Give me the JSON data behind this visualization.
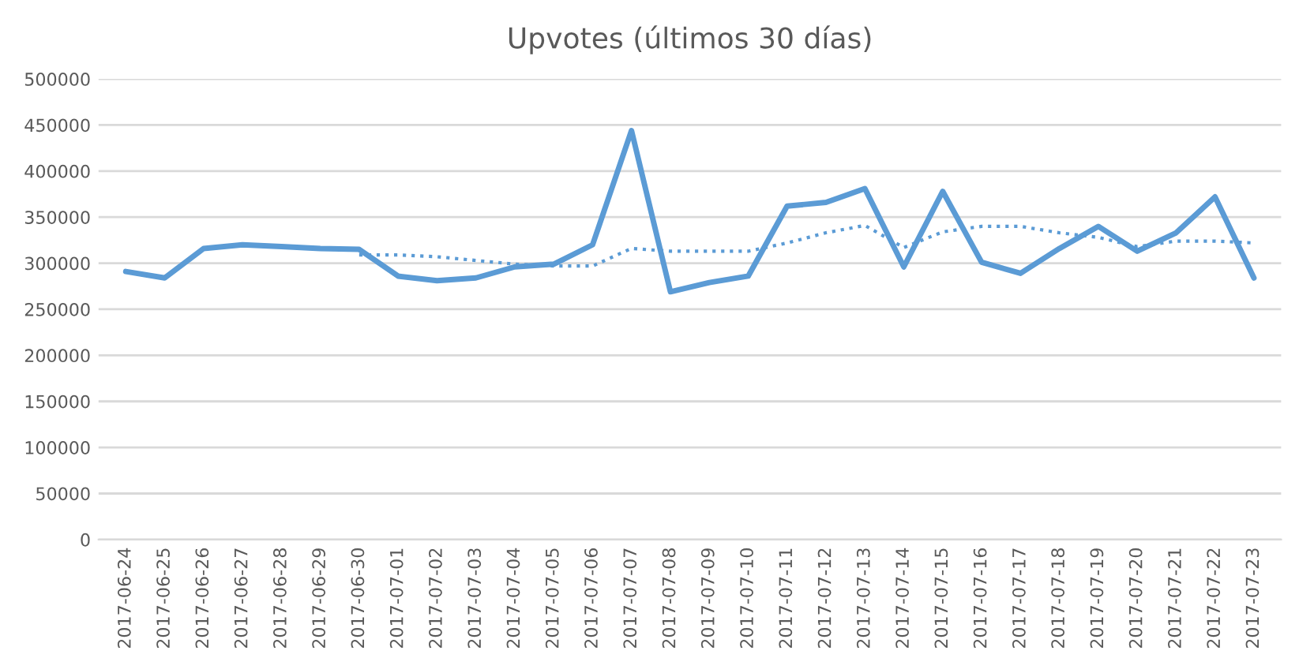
{
  "chart_data": {
    "type": "line",
    "title": "Upvotes (últimos 30 días)",
    "categories": [
      "2017-06-24",
      "2017-06-25",
      "2017-06-26",
      "2017-06-27",
      "2017-06-28",
      "2017-06-29",
      "2017-06-30",
      "2017-07-01",
      "2017-07-02",
      "2017-07-03",
      "2017-07-04",
      "2017-07-05",
      "2017-07-06",
      "2017-07-07",
      "2017-07-08",
      "2017-07-09",
      "2017-07-10",
      "2017-07-11",
      "2017-07-12",
      "2017-07-13",
      "2017-07-14",
      "2017-07-15",
      "2017-07-16",
      "2017-07-17",
      "2017-07-18",
      "2017-07-19",
      "2017-07-20",
      "2017-07-21",
      "2017-07-22",
      "2017-07-23"
    ],
    "series": [
      {
        "color": "#5b9bd5",
        "line_style": "solid",
        "values": [
          291000,
          284000,
          316000,
          320000,
          318000,
          316000,
          315000,
          286000,
          281000,
          284000,
          296000,
          299000,
          320000,
          444000,
          269000,
          279000,
          286000,
          362000,
          366000,
          381000,
          296000,
          378000,
          301000,
          289000,
          316000,
          340000,
          313000,
          333000,
          372000,
          284000
        ]
      },
      {
        "color": "#5b9bd5",
        "line_style": "dotted",
        "values": [
          null,
          null,
          null,
          null,
          null,
          null,
          309000,
          309000,
          307000,
          303000,
          299000,
          297000,
          297000,
          316000,
          313000,
          313000,
          313000,
          322000,
          333000,
          341000,
          317000,
          334000,
          340000,
          340000,
          333000,
          328000,
          318000,
          324000,
          324000,
          322000
        ]
      }
    ],
    "ylim": [
      0,
      500000
    ],
    "yticks": [
      0,
      50000,
      100000,
      150000,
      200000,
      250000,
      300000,
      350000,
      400000,
      450000,
      500000
    ],
    "grid": "y",
    "legend": false
  }
}
